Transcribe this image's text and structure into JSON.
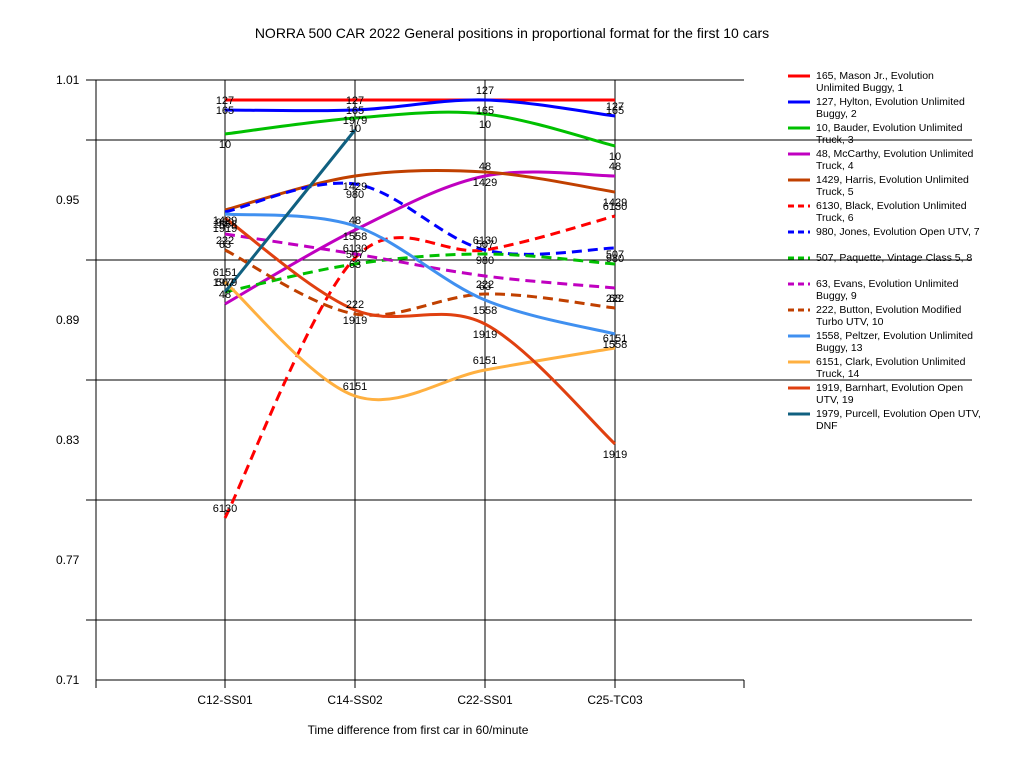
{
  "chart_data": {
    "type": "line",
    "title": "NORRA 500 CAR 2022  General positions in proportional format for the first 10 cars",
    "xlabel": "Time difference from first car in 60/minute",
    "ylabel": "",
    "categories": [
      "C12-SS01",
      "C14-SS02",
      "C22-SS01",
      "C25-TC03"
    ],
    "ylim": [
      0.71,
      1.01
    ],
    "yticks": [
      1.01,
      0.95,
      0.89,
      0.83,
      0.77,
      0.71
    ],
    "grid": "horizontal and vertical",
    "legend_position": "right",
    "series": [
      {
        "name": "165, Mason Jr., Evolution Unlimited Buggy, 1",
        "label": "165",
        "color": "#ff0000",
        "dash": false,
        "values": [
          1.0,
          1.0,
          1.0,
          1.0
        ]
      },
      {
        "name": "127, Hylton, Evolution Unlimited Buggy, 2",
        "label": "127",
        "color": "#0000ff",
        "dash": false,
        "values": [
          0.995,
          0.995,
          1.0,
          0.992
        ]
      },
      {
        "name": "10, Bauder, Evolution Unlimited Truck, 3",
        "label": "10",
        "color": "#00c000",
        "dash": false,
        "values": [
          0.983,
          0.991,
          0.993,
          0.977
        ]
      },
      {
        "name": "48, McCarthy, Evolution Unlimited Truck, 4",
        "label": "48",
        "color": "#c000c0",
        "dash": false,
        "values": [
          0.898,
          0.935,
          0.962,
          0.962
        ]
      },
      {
        "name": "1429, Harris, Evolution Unlimited Truck, 5",
        "label": "1429",
        "color": "#c04000",
        "dash": false,
        "values": [
          0.945,
          0.962,
          0.964,
          0.954
        ]
      },
      {
        "name": "6130, Black, Evolution Unlimited Truck, 6",
        "label": "6130",
        "color": "#ff0000",
        "dash": true,
        "values": [
          0.791,
          0.921,
          0.925,
          0.942
        ]
      },
      {
        "name": "980, Jones, Evolution Open UTV, 7",
        "label": "980",
        "color": "#0000ff",
        "dash": true,
        "values": [
          0.944,
          0.958,
          0.925,
          0.926
        ]
      },
      {
        "name": "507, Paquette, Vintage Class 5, 8",
        "label": "507",
        "color": "#00c000",
        "dash": true,
        "values": [
          0.904,
          0.918,
          0.923,
          0.918
        ]
      },
      {
        "name": "63, Evans, Evolution Unlimited Buggy, 9",
        "label": "63",
        "color": "#c000c0",
        "dash": true,
        "values": [
          0.933,
          0.923,
          0.912,
          0.906
        ]
      },
      {
        "name": "222, Button, Evolution Modified Turbo UTV, 10",
        "label": "222",
        "color": "#c04000",
        "dash": true,
        "values": [
          0.925,
          0.893,
          0.903,
          0.896
        ]
      },
      {
        "name": "1558, Peltzer, Evolution Unlimited Buggy, 13",
        "label": "1558",
        "color": "#4090f0",
        "dash": false,
        "values": [
          0.943,
          0.937,
          0.9,
          0.883
        ]
      },
      {
        "name": "6151, Clark, Evolution Unlimited Truck, 14",
        "label": "6151",
        "color": "#ffb040",
        "dash": false,
        "values": [
          0.909,
          0.852,
          0.865,
          0.876
        ]
      },
      {
        "name": "1919, Barnhart, Evolution Open UTV, 19",
        "label": "1919",
        "color": "#e04010",
        "dash": false,
        "values": [
          0.941,
          0.895,
          0.888,
          0.828
        ]
      },
      {
        "name": "1979, Purcell, Evolution Open UTV, DNF",
        "label": "1979",
        "color": "#106080",
        "dash": false,
        "values": [
          0.904,
          0.985,
          null,
          null
        ]
      }
    ]
  }
}
